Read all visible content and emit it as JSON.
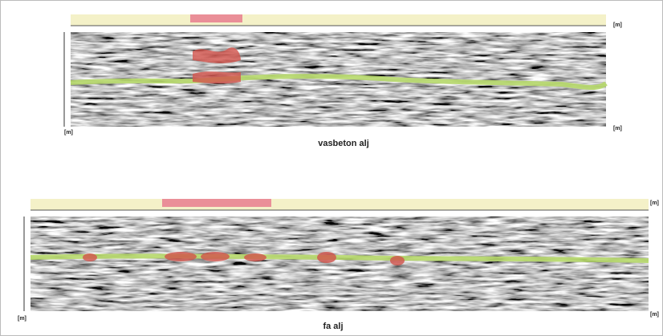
{
  "panels": [
    {
      "caption": "vasbeton alj",
      "unit_labels": [
        "[m]",
        "[m]",
        "[m]"
      ]
    },
    {
      "caption": "fa alj",
      "unit_labels": [
        "[m]",
        "[m]",
        "[m]"
      ]
    }
  ]
}
